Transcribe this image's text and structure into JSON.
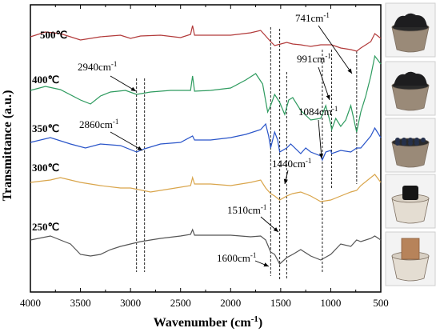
{
  "chart_data": {
    "type": "line",
    "xlabel": "Wavenumber (cm",
    "xlabel_sup": "-1",
    "xlabel_end": ")",
    "ylabel": "Transmittance (a.u.)",
    "xlim": [
      4000,
      500
    ],
    "x_reversed": true,
    "x_ticks": [
      "4000",
      "3500",
      "3000",
      "2500",
      "2000",
      "1500",
      "1000",
      "500"
    ],
    "x_tick_values": [
      4000,
      3500,
      3000,
      2500,
      2000,
      1500,
      1000,
      500
    ],
    "y_ticks_shown": false,
    "grid": false,
    "series": [
      {
        "name": "500℃",
        "color": "#b23a3a"
      },
      {
        "name": "400℃",
        "color": "#2e9b5f"
      },
      {
        "name": "350℃",
        "color": "#2a55c9"
      },
      {
        "name": "300℃",
        "color": "#d9a54b"
      },
      {
        "name": "250℃",
        "color": "#555555"
      }
    ],
    "reference_lines": [
      2940,
      2860,
      1600,
      1510,
      1440,
      1084,
      991,
      741
    ],
    "annotations": [
      {
        "label": "741cm",
        "sup": "-1",
        "wavenumber": 741
      },
      {
        "label": "2940cm",
        "sup": "-1",
        "wavenumber": 2940
      },
      {
        "label": "991cm",
        "sup": "-1",
        "wavenumber": 991
      },
      {
        "label": "2860cm",
        "sup": "-1",
        "wavenumber": 2860
      },
      {
        "label": "1084cm",
        "sup": "-1",
        "wavenumber": 1084
      },
      {
        "label": "1440cm",
        "sup": "-1",
        "wavenumber": 1440
      },
      {
        "label": "1510cm",
        "sup": "-1",
        "wavenumber": 1510
      },
      {
        "label": "1600cm",
        "sup": "-1",
        "wavenumber": 1600
      }
    ],
    "photos": [
      {
        "name": "500℃",
        "content": "black-lumps"
      },
      {
        "name": "400℃",
        "content": "black-lumps"
      },
      {
        "name": "350℃",
        "content": "dark-granules"
      },
      {
        "name": "300℃",
        "content": "black-block"
      },
      {
        "name": "250℃",
        "content": "brown-wood-block"
      }
    ]
  }
}
